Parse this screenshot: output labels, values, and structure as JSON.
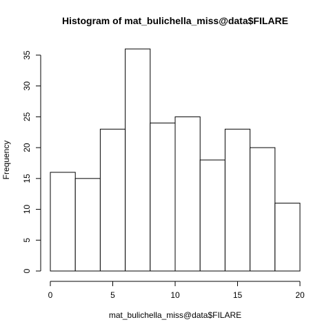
{
  "chart_data": {
    "type": "bar",
    "title": "Histogram of mat_bulichella_miss@data$FILARE",
    "xlabel": "mat_bulichella_miss@data$FILARE",
    "ylabel": "Frequency",
    "bins": [
      {
        "x0": 0,
        "x1": 2,
        "count": 16
      },
      {
        "x0": 2,
        "x1": 4,
        "count": 15
      },
      {
        "x0": 4,
        "x1": 6,
        "count": 23
      },
      {
        "x0": 6,
        "x1": 8,
        "count": 36
      },
      {
        "x0": 8,
        "x1": 10,
        "count": 24
      },
      {
        "x0": 10,
        "x1": 12,
        "count": 25
      },
      {
        "x0": 12,
        "x1": 14,
        "count": 18
      },
      {
        "x0": 14,
        "x1": 16,
        "count": 23
      },
      {
        "x0": 16,
        "x1": 18,
        "count": 20
      },
      {
        "x0": 18,
        "x1": 20,
        "count": 11
      }
    ],
    "xlim": [
      0,
      20
    ],
    "ylim": [
      0,
      36
    ],
    "x_ticks": [
      0,
      5,
      10,
      15,
      20
    ],
    "y_ticks": [
      0,
      5,
      10,
      15,
      20,
      25,
      30,
      35
    ],
    "grid": false,
    "legend": "none",
    "colors": {
      "bar_fill": "#ffffff",
      "bar_stroke": "#000000"
    }
  }
}
